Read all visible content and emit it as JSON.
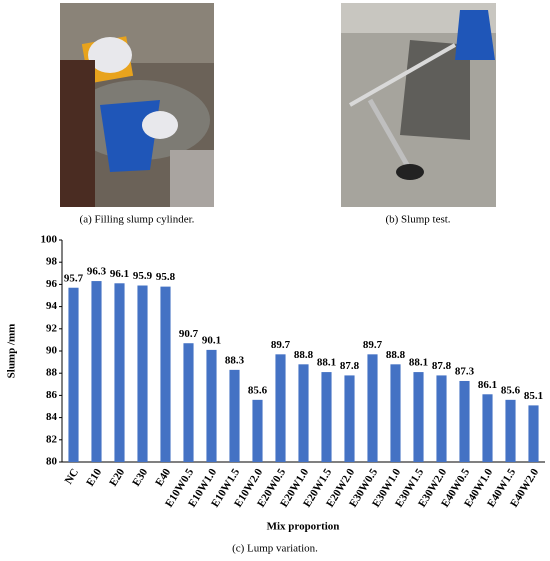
{
  "captions": {
    "a": "(a) Filling slump cylinder.",
    "b": "(b) Slump test."
  },
  "chart_data": {
    "type": "bar",
    "caption": "(c) Lump variation.",
    "x_label": "Mix proportion",
    "y_label": "Slump /mm",
    "categories": [
      "NC",
      "E10",
      "E20",
      "E30",
      "E40",
      "E10W0.5",
      "E10W1.0",
      "E10W1.5",
      "E10W2.0",
      "E20W0.5",
      "E20W1.0",
      "E20W1.5",
      "E20W2.0",
      "E30W0.5",
      "E30W1.0",
      "E30W1.5",
      "E30W2.0",
      "E40W0.5",
      "E40W1.0",
      "E40W1.5",
      "E40W2.0"
    ],
    "values": [
      95.7,
      96.3,
      96.1,
      95.9,
      95.8,
      90.7,
      90.1,
      88.3,
      85.6,
      89.7,
      88.8,
      88.1,
      87.8,
      89.7,
      88.8,
      88.1,
      87.8,
      87.3,
      86.1,
      85.6,
      85.1
    ],
    "color": "#4472c4",
    "ylim": [
      80,
      100
    ],
    "yticks": [
      80,
      82,
      84,
      86,
      88,
      90,
      92,
      94,
      96,
      98,
      100
    ]
  }
}
